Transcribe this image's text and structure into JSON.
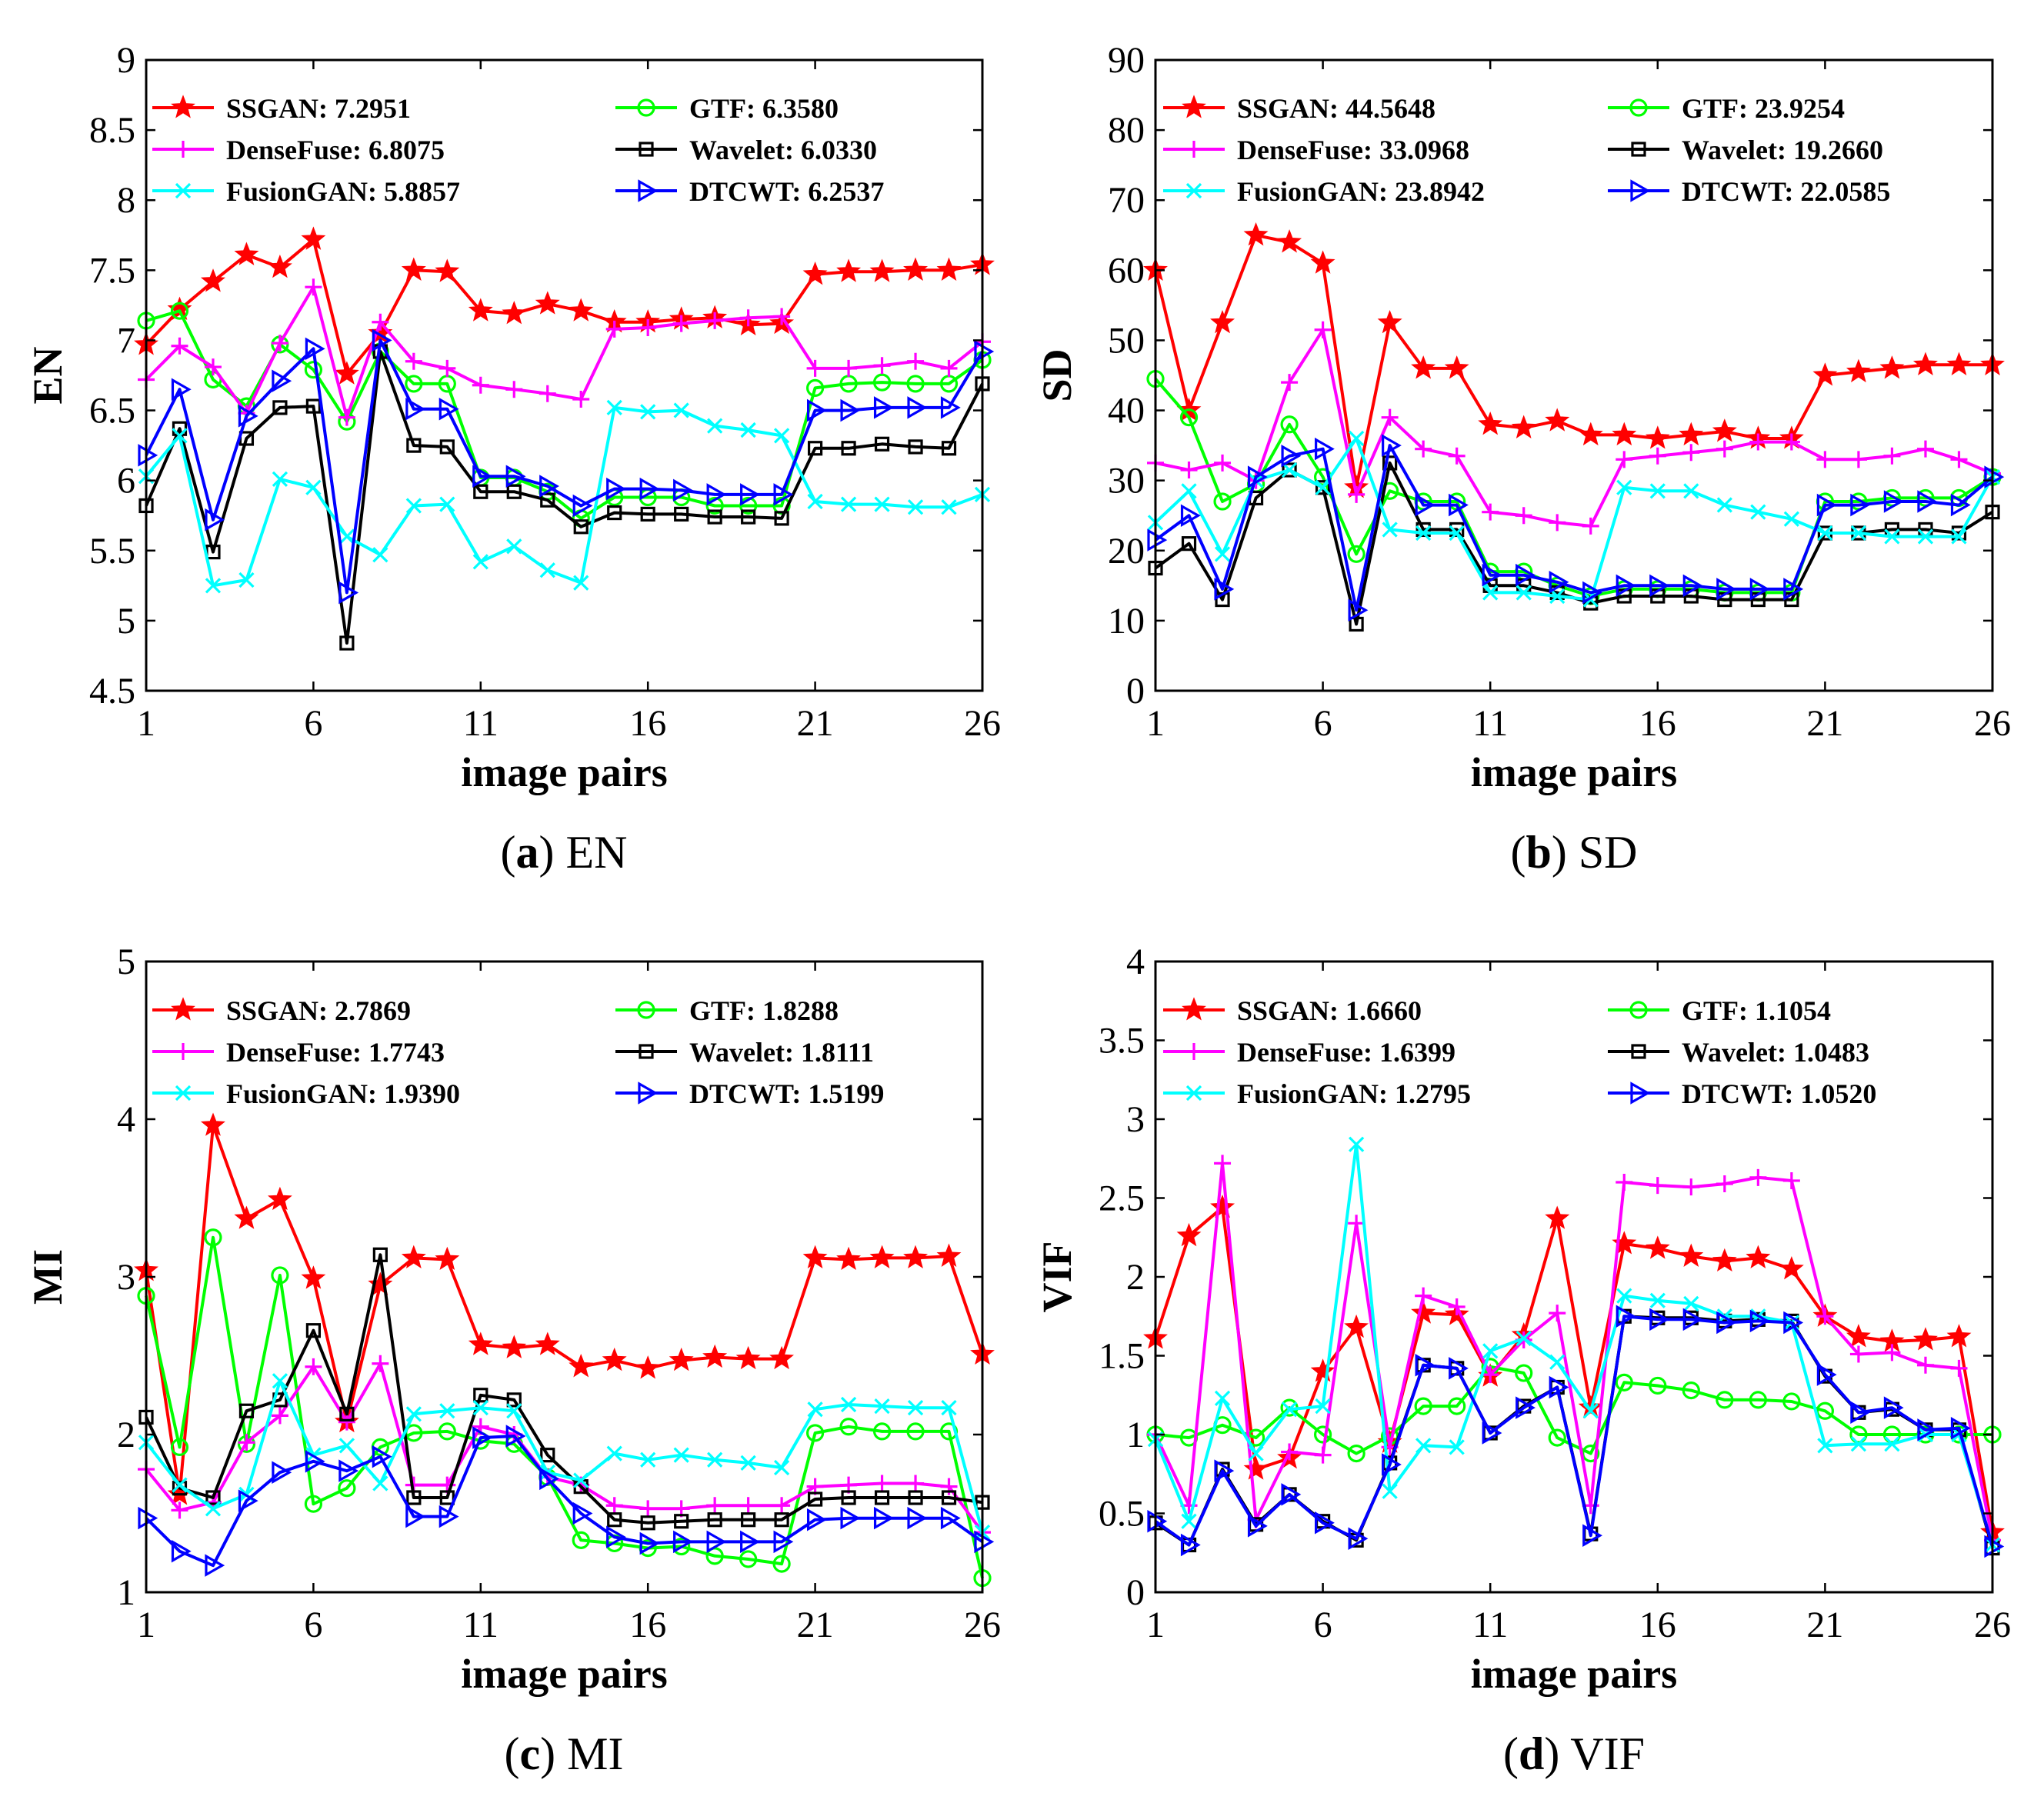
{
  "colors": {
    "SSGAN": "#ff0000",
    "GTF": "#00ff00",
    "DenseFuse": "#ff00ff",
    "Wavelet": "#000000",
    "FusionGAN": "#00ffff",
    "DTCWT": "#0000ff"
  },
  "chart_data": [
    {
      "type": "line",
      "caption_letter": "a",
      "caption_text": " EN",
      "xlabel": "image pairs",
      "ylabel": "EN",
      "xlim": [
        1,
        26
      ],
      "ylim": [
        4.5,
        9
      ],
      "xticks": [
        1,
        6,
        11,
        16,
        21,
        26
      ],
      "yticks": [
        4.5,
        5,
        5.5,
        6,
        6.5,
        7,
        7.5,
        8,
        8.5,
        9
      ],
      "ytick_labels": [
        "4.5",
        "5",
        "5.5",
        "6",
        "6.5",
        "7",
        "7.5",
        "8",
        "8.5",
        "9"
      ],
      "series": [
        {
          "name": "SSGAN",
          "legend": "SSGAN: 7.2951",
          "values": [
            6.97,
            7.22,
            7.42,
            7.61,
            7.52,
            7.72,
            6.76,
            7.05,
            7.5,
            7.49,
            7.21,
            7.19,
            7.26,
            7.21,
            7.13,
            7.13,
            7.15,
            7.16,
            7.11,
            7.12,
            7.47,
            7.49,
            7.49,
            7.5,
            7.5,
            7.54
          ]
        },
        {
          "name": "GTF",
          "legend": "GTF: 6.3580",
          "values": [
            7.14,
            7.21,
            6.72,
            6.53,
            6.97,
            6.79,
            6.42,
            6.92,
            6.69,
            6.69,
            6.02,
            6.02,
            5.92,
            5.73,
            5.88,
            5.88,
            5.88,
            5.82,
            5.82,
            5.82,
            6.66,
            6.69,
            6.7,
            6.69,
            6.69,
            6.86
          ]
        },
        {
          "name": "DenseFuse",
          "legend": "DenseFuse: 6.8075",
          "values": [
            6.72,
            6.96,
            6.81,
            6.48,
            6.98,
            7.38,
            6.45,
            7.13,
            6.85,
            6.8,
            6.68,
            6.65,
            6.62,
            6.58,
            7.08,
            7.09,
            7.12,
            7.14,
            7.16,
            7.17,
            6.8,
            6.8,
            6.82,
            6.85,
            6.8,
            6.99
          ]
        },
        {
          "name": "Wavelet",
          "legend": "Wavelet: 6.0330",
          "values": [
            5.82,
            6.37,
            5.49,
            6.3,
            6.52,
            6.53,
            4.84,
            6.92,
            6.25,
            6.24,
            5.92,
            5.92,
            5.86,
            5.67,
            5.77,
            5.76,
            5.76,
            5.74,
            5.74,
            5.73,
            6.23,
            6.23,
            6.26,
            6.24,
            6.23,
            6.69
          ]
        },
        {
          "name": "FusionGAN",
          "legend": "FusionGAN: 5.8857",
          "values": [
            6.03,
            6.32,
            5.25,
            5.29,
            6.01,
            5.95,
            5.6,
            5.47,
            5.82,
            5.83,
            5.42,
            5.53,
            5.36,
            5.27,
            6.52,
            6.49,
            6.5,
            6.39,
            6.36,
            6.32,
            5.85,
            5.83,
            5.83,
            5.81,
            5.81,
            5.9
          ]
        },
        {
          "name": "DTCWT",
          "legend": "DTCWT: 6.2537",
          "values": [
            6.18,
            6.65,
            5.72,
            6.46,
            6.71,
            6.94,
            5.2,
            7.0,
            6.51,
            6.51,
            6.03,
            6.03,
            5.96,
            5.82,
            5.94,
            5.94,
            5.93,
            5.9,
            5.9,
            5.9,
            6.5,
            6.5,
            6.52,
            6.52,
            6.52,
            6.92
          ]
        }
      ]
    },
    {
      "type": "line",
      "caption_letter": "b",
      "caption_text": " SD",
      "xlabel": "image pairs",
      "ylabel": "SD",
      "xlim": [
        1,
        26
      ],
      "ylim": [
        0,
        90
      ],
      "xticks": [
        1,
        6,
        11,
        16,
        21,
        26
      ],
      "yticks": [
        0,
        10,
        20,
        30,
        40,
        50,
        60,
        70,
        80,
        90
      ],
      "ytick_labels": [
        "0",
        "10",
        "20",
        "30",
        "40",
        "50",
        "60",
        "70",
        "80",
        "90"
      ],
      "series": [
        {
          "name": "SSGAN",
          "legend": "SSGAN: 44.5648",
          "values": [
            60.0,
            40.0,
            52.5,
            65.0,
            64.0,
            61.0,
            29.0,
            52.5,
            46.0,
            46.0,
            38.0,
            37.5,
            38.5,
            36.5,
            36.5,
            36.0,
            36.5,
            37.0,
            36.0,
            36.0,
            45.0,
            45.5,
            46.0,
            46.5,
            46.5,
            46.5
          ]
        },
        {
          "name": "GTF",
          "legend": "GTF: 23.9254",
          "values": [
            44.5,
            39.0,
            27.0,
            29.5,
            38.0,
            30.5,
            19.5,
            28.5,
            27.0,
            27.0,
            17.0,
            17.0,
            15.0,
            13.5,
            14.5,
            14.5,
            14.5,
            14.0,
            14.0,
            14.0,
            27.0,
            27.0,
            27.5,
            27.5,
            27.5,
            30.5
          ]
        },
        {
          "name": "DenseFuse",
          "legend": "DenseFuse: 33.0968",
          "values": [
            32.5,
            31.5,
            32.5,
            30.0,
            44.0,
            51.5,
            28.0,
            39.0,
            34.5,
            33.5,
            25.5,
            25.0,
            24.0,
            23.5,
            33.0,
            33.5,
            34.0,
            34.5,
            35.5,
            35.5,
            33.0,
            33.0,
            33.5,
            34.5,
            33.0,
            31.0
          ]
        },
        {
          "name": "Wavelet",
          "legend": "Wavelet: 19.2660",
          "values": [
            17.5,
            21.0,
            13.0,
            27.5,
            31.5,
            29.0,
            9.5,
            32.5,
            23.0,
            23.0,
            15.0,
            15.0,
            14.0,
            12.5,
            13.5,
            13.5,
            13.5,
            13.0,
            13.0,
            13.0,
            22.5,
            22.5,
            23.0,
            23.0,
            22.5,
            25.5
          ]
        },
        {
          "name": "FusionGAN",
          "legend": "FusionGAN: 23.8942",
          "values": [
            24.0,
            28.5,
            19.5,
            30.0,
            31.5,
            29.0,
            36.0,
            23.0,
            22.5,
            22.5,
            14.0,
            14.0,
            13.5,
            13.0,
            29.0,
            28.5,
            28.5,
            26.5,
            25.5,
            24.5,
            22.5,
            22.5,
            22.0,
            22.0,
            22.0,
            30.5
          ]
        },
        {
          "name": "DTCWT",
          "legend": "DTCWT: 22.0585",
          "values": [
            21.5,
            25.0,
            14.5,
            30.5,
            33.5,
            34.5,
            11.5,
            35.0,
            26.5,
            26.5,
            16.5,
            16.5,
            15.5,
            14.0,
            15.0,
            15.0,
            15.0,
            14.5,
            14.5,
            14.5,
            26.5,
            26.5,
            27.0,
            27.0,
            26.5,
            30.5
          ]
        }
      ]
    },
    {
      "type": "line",
      "caption_letter": "c",
      "caption_text": " MI",
      "xlabel": "image pairs",
      "ylabel": "MI",
      "xlim": [
        1,
        26
      ],
      "ylim": [
        1,
        5
      ],
      "xticks": [
        1,
        6,
        11,
        16,
        21,
        26
      ],
      "yticks": [
        1,
        2,
        3,
        4,
        5
      ],
      "ytick_labels": [
        "1",
        "2",
        "3",
        "4",
        "5"
      ],
      "series": [
        {
          "name": "SSGAN",
          "legend": "SSGAN: 2.7869",
          "values": [
            3.04,
            1.62,
            3.96,
            3.37,
            3.49,
            2.99,
            2.08,
            2.95,
            3.12,
            3.11,
            2.57,
            2.55,
            2.57,
            2.43,
            2.47,
            2.42,
            2.47,
            2.49,
            2.48,
            2.48,
            3.12,
            3.11,
            3.12,
            3.12,
            3.13,
            2.51
          ]
        },
        {
          "name": "GTF",
          "legend": "GTF: 1.8288",
          "values": [
            2.88,
            1.92,
            3.25,
            1.94,
            3.01,
            1.56,
            1.66,
            1.92,
            2.01,
            2.02,
            1.96,
            1.94,
            1.73,
            1.33,
            1.31,
            1.28,
            1.29,
            1.23,
            1.21,
            1.18,
            2.01,
            2.05,
            2.02,
            2.02,
            2.02,
            1.09
          ]
        },
        {
          "name": "DenseFuse",
          "legend": "DenseFuse: 1.7743",
          "values": [
            1.78,
            1.52,
            1.57,
            1.95,
            2.12,
            2.43,
            2.08,
            2.45,
            1.68,
            1.68,
            2.05,
            2.0,
            1.73,
            1.68,
            1.55,
            1.53,
            1.53,
            1.55,
            1.55,
            1.55,
            1.67,
            1.68,
            1.69,
            1.69,
            1.67,
            1.38
          ]
        },
        {
          "name": "Wavelet",
          "legend": "Wavelet: 1.8111",
          "values": [
            2.11,
            1.66,
            1.6,
            2.15,
            2.22,
            2.66,
            2.13,
            3.14,
            1.6,
            1.6,
            2.25,
            2.22,
            1.87,
            1.67,
            1.46,
            1.44,
            1.45,
            1.46,
            1.46,
            1.46,
            1.59,
            1.6,
            1.6,
            1.6,
            1.6,
            1.57
          ]
        },
        {
          "name": "FusionGAN",
          "legend": "FusionGAN: 1.9390",
          "values": [
            1.95,
            1.68,
            1.53,
            1.62,
            2.34,
            1.87,
            1.93,
            1.69,
            2.13,
            2.15,
            2.17,
            2.15,
            1.76,
            1.71,
            1.88,
            1.84,
            1.87,
            1.84,
            1.82,
            1.79,
            2.16,
            2.19,
            2.18,
            2.17,
            2.17,
            1.38
          ]
        },
        {
          "name": "DTCWT",
          "legend": "DTCWT: 1.5199",
          "values": [
            1.47,
            1.26,
            1.17,
            1.58,
            1.76,
            1.83,
            1.77,
            1.86,
            1.48,
            1.48,
            1.98,
            1.99,
            1.72,
            1.5,
            1.35,
            1.31,
            1.32,
            1.32,
            1.32,
            1.32,
            1.46,
            1.47,
            1.47,
            1.47,
            1.47,
            1.32
          ]
        }
      ]
    },
    {
      "type": "line",
      "caption_letter": "d",
      "caption_text": " VIF",
      "xlabel": "image pairs",
      "ylabel": "VIF",
      "xlim": [
        1,
        26
      ],
      "ylim": [
        0,
        4
      ],
      "xticks": [
        1,
        6,
        11,
        16,
        21,
        26
      ],
      "yticks": [
        0,
        0.5,
        1,
        1.5,
        2,
        2.5,
        3,
        3.5,
        4
      ],
      "ytick_labels": [
        "0",
        "0.5",
        "1",
        "1.5",
        "2",
        "2.5",
        "3",
        "3.5",
        "4"
      ],
      "series": [
        {
          "name": "SSGAN",
          "legend": "SSGAN: 1.6660",
          "values": [
            1.61,
            2.26,
            2.44,
            0.78,
            0.85,
            1.4,
            1.68,
            0.95,
            1.77,
            1.76,
            1.37,
            1.63,
            2.37,
            1.17,
            2.21,
            2.18,
            2.13,
            2.1,
            2.12,
            2.05,
            1.75,
            1.62,
            1.59,
            1.6,
            1.62,
            0.38
          ]
        },
        {
          "name": "GTF",
          "legend": "GTF: 1.1054",
          "values": [
            1.0,
            0.98,
            1.06,
            0.98,
            1.17,
            1.0,
            0.88,
            0.99,
            1.18,
            1.18,
            1.43,
            1.39,
            0.98,
            0.88,
            1.33,
            1.31,
            1.28,
            1.22,
            1.22,
            1.21,
            1.15,
            1.0,
            1.0,
            1.0,
            1.0,
            1.0
          ]
        },
        {
          "name": "DenseFuse",
          "legend": "DenseFuse: 1.6399",
          "values": [
            1.0,
            0.55,
            2.72,
            0.46,
            0.89,
            0.87,
            2.34,
            0.92,
            1.88,
            1.81,
            1.38,
            1.6,
            1.77,
            0.55,
            2.6,
            2.58,
            2.57,
            2.59,
            2.63,
            2.61,
            1.75,
            1.51,
            1.52,
            1.44,
            1.42,
            0.33
          ]
        },
        {
          "name": "Wavelet",
          "legend": "Wavelet: 1.0483",
          "values": [
            0.44,
            0.3,
            0.78,
            0.43,
            0.62,
            0.45,
            0.33,
            0.82,
            1.44,
            1.42,
            1.01,
            1.18,
            1.3,
            0.37,
            1.75,
            1.74,
            1.74,
            1.72,
            1.73,
            1.72,
            1.37,
            1.14,
            1.16,
            1.03,
            1.03,
            0.28
          ]
        },
        {
          "name": "FusionGAN",
          "legend": "FusionGAN: 1.2795",
          "values": [
            0.97,
            0.45,
            1.23,
            0.88,
            1.16,
            1.18,
            2.84,
            0.64,
            0.93,
            0.92,
            1.53,
            1.61,
            1.46,
            1.15,
            1.88,
            1.85,
            1.83,
            1.75,
            1.75,
            1.71,
            0.93,
            0.94,
            0.94,
            1.0,
            1.0,
            0.3
          ]
        },
        {
          "name": "DTCWT",
          "legend": "DTCWT: 1.0520",
          "values": [
            0.45,
            0.3,
            0.77,
            0.42,
            0.62,
            0.44,
            0.34,
            0.81,
            1.44,
            1.42,
            1.01,
            1.17,
            1.3,
            0.36,
            1.75,
            1.73,
            1.73,
            1.71,
            1.72,
            1.71,
            1.38,
            1.14,
            1.17,
            1.03,
            1.04,
            0.29
          ]
        }
      ]
    }
  ]
}
